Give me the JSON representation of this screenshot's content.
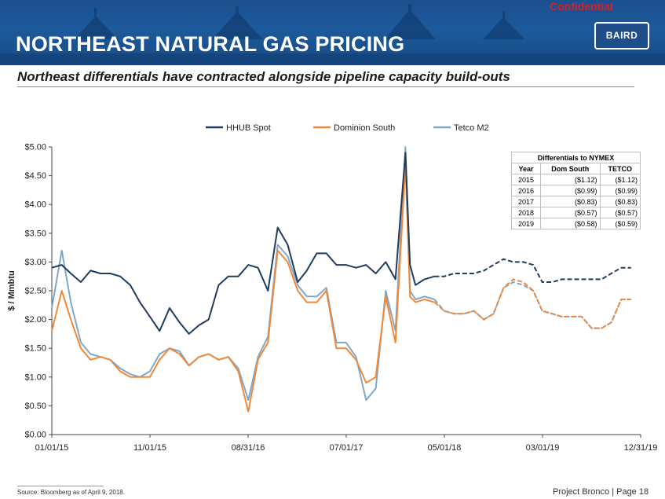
{
  "header": {
    "title": "NORTHEAST NATURAL GAS PRICING",
    "confidential": "Confidential",
    "logo_text": "BAIRD"
  },
  "subtitle": "Northeast differentials have contracted alongside pipeline capacity build-outs",
  "colors": {
    "header_bg": "#1d5a9c",
    "hhub": "#1f3c5e",
    "dominion": "#f0883a",
    "tetco": "#7fa7c9",
    "confidential": "#d4202a"
  },
  "chart_data": {
    "type": "line",
    "ylabel": "$ / Mmbtu",
    "ylim": [
      0,
      5
    ],
    "y_ticks": [
      "$0.00",
      "$0.50",
      "$1.00",
      "$1.50",
      "$2.00",
      "$2.50",
      "$3.00",
      "$3.50",
      "$4.00",
      "$4.50",
      "$5.00"
    ],
    "x_tick_labels": [
      "01/01/15",
      "11/01/15",
      "08/31/16",
      "07/01/17",
      "05/01/18",
      "03/01/19",
      "12/31/19"
    ],
    "x_range": [
      "2015-01-01",
      "2019-12-31"
    ],
    "grid": false,
    "legend_position": "top",
    "legend": [
      "HHUB Spot",
      "Dominion South",
      "Tetco M2"
    ],
    "forecast_start": "2018-04-09",
    "series": [
      {
        "name": "HHUB Spot",
        "style": "solid then dashed (forecast)",
        "points": [
          [
            "2015-01-01",
            2.9
          ],
          [
            "2015-02-01",
            2.95
          ],
          [
            "2015-03-01",
            2.8
          ],
          [
            "2015-04-01",
            2.65
          ],
          [
            "2015-05-01",
            2.85
          ],
          [
            "2015-06-01",
            2.8
          ],
          [
            "2015-07-01",
            2.8
          ],
          [
            "2015-08-01",
            2.75
          ],
          [
            "2015-09-01",
            2.6
          ],
          [
            "2015-10-01",
            2.3
          ],
          [
            "2015-11-01",
            2.05
          ],
          [
            "2015-12-01",
            1.8
          ],
          [
            "2016-01-01",
            2.2
          ],
          [
            "2016-02-01",
            1.95
          ],
          [
            "2016-03-01",
            1.75
          ],
          [
            "2016-04-01",
            1.9
          ],
          [
            "2016-05-01",
            2.0
          ],
          [
            "2016-06-01",
            2.6
          ],
          [
            "2016-07-01",
            2.75
          ],
          [
            "2016-08-01",
            2.75
          ],
          [
            "2016-09-01",
            2.95
          ],
          [
            "2016-10-01",
            2.9
          ],
          [
            "2016-11-01",
            2.5
          ],
          [
            "2016-12-01",
            3.6
          ],
          [
            "2017-01-01",
            3.3
          ],
          [
            "2017-02-01",
            2.65
          ],
          [
            "2017-03-01",
            2.85
          ],
          [
            "2017-04-01",
            3.15
          ],
          [
            "2017-05-01",
            3.15
          ],
          [
            "2017-06-01",
            2.95
          ],
          [
            "2017-07-01",
            2.95
          ],
          [
            "2017-08-01",
            2.9
          ],
          [
            "2017-09-01",
            2.95
          ],
          [
            "2017-10-01",
            2.8
          ],
          [
            "2017-11-01",
            3.0
          ],
          [
            "2017-12-01",
            2.7
          ],
          [
            "2018-01-01",
            4.9
          ],
          [
            "2018-01-15",
            2.95
          ],
          [
            "2018-02-01",
            2.6
          ],
          [
            "2018-03-01",
            2.7
          ],
          [
            "2018-04-01",
            2.75
          ],
          [
            "2018-05-01",
            2.75
          ],
          [
            "2018-06-01",
            2.8
          ],
          [
            "2018-07-01",
            2.8
          ],
          [
            "2018-08-01",
            2.8
          ],
          [
            "2018-09-01",
            2.85
          ],
          [
            "2018-10-01",
            2.95
          ],
          [
            "2018-11-01",
            3.05
          ],
          [
            "2018-12-01",
            3.0
          ],
          [
            "2019-01-01",
            3.0
          ],
          [
            "2019-02-01",
            2.95
          ],
          [
            "2019-03-01",
            2.65
          ],
          [
            "2019-04-01",
            2.65
          ],
          [
            "2019-05-01",
            2.7
          ],
          [
            "2019-06-01",
            2.7
          ],
          [
            "2019-07-01",
            2.7
          ],
          [
            "2019-08-01",
            2.7
          ],
          [
            "2019-09-01",
            2.7
          ],
          [
            "2019-10-01",
            2.8
          ],
          [
            "2019-11-01",
            2.9
          ],
          [
            "2019-12-01",
            2.9
          ]
        ]
      },
      {
        "name": "Dominion South",
        "style": "solid then dashed (forecast)",
        "points": [
          [
            "2015-01-01",
            1.8
          ],
          [
            "2015-02-01",
            2.5
          ],
          [
            "2015-03-01",
            2.0
          ],
          [
            "2015-04-01",
            1.5
          ],
          [
            "2015-05-01",
            1.3
          ],
          [
            "2015-06-01",
            1.35
          ],
          [
            "2015-07-01",
            1.3
          ],
          [
            "2015-08-01",
            1.1
          ],
          [
            "2015-09-01",
            1.0
          ],
          [
            "2015-10-01",
            1.0
          ],
          [
            "2015-11-01",
            1.0
          ],
          [
            "2015-12-01",
            1.3
          ],
          [
            "2016-01-01",
            1.5
          ],
          [
            "2016-02-01",
            1.4
          ],
          [
            "2016-03-01",
            1.2
          ],
          [
            "2016-04-01",
            1.35
          ],
          [
            "2016-05-01",
            1.4
          ],
          [
            "2016-06-01",
            1.3
          ],
          [
            "2016-07-01",
            1.35
          ],
          [
            "2016-08-01",
            1.1
          ],
          [
            "2016-09-01",
            0.4
          ],
          [
            "2016-10-01",
            1.3
          ],
          [
            "2016-11-01",
            1.6
          ],
          [
            "2016-12-01",
            3.2
          ],
          [
            "2017-01-01",
            3.0
          ],
          [
            "2017-02-01",
            2.5
          ],
          [
            "2017-03-01",
            2.3
          ],
          [
            "2017-04-01",
            2.3
          ],
          [
            "2017-05-01",
            2.5
          ],
          [
            "2017-06-01",
            1.5
          ],
          [
            "2017-07-01",
            1.5
          ],
          [
            "2017-08-01",
            1.3
          ],
          [
            "2017-09-01",
            0.9
          ],
          [
            "2017-10-01",
            1.0
          ],
          [
            "2017-11-01",
            2.4
          ],
          [
            "2017-12-01",
            1.6
          ],
          [
            "2018-01-01",
            4.7
          ],
          [
            "2018-01-15",
            2.4
          ],
          [
            "2018-02-01",
            2.3
          ],
          [
            "2018-03-01",
            2.35
          ],
          [
            "2018-04-01",
            2.3
          ],
          [
            "2018-05-01",
            2.15
          ],
          [
            "2018-06-01",
            2.1
          ],
          [
            "2018-07-01",
            2.1
          ],
          [
            "2018-08-01",
            2.15
          ],
          [
            "2018-09-01",
            2.0
          ],
          [
            "2018-10-01",
            2.1
          ],
          [
            "2018-11-01",
            2.55
          ],
          [
            "2018-12-01",
            2.7
          ],
          [
            "2019-01-01",
            2.65
          ],
          [
            "2019-02-01",
            2.5
          ],
          [
            "2019-03-01",
            2.15
          ],
          [
            "2019-04-01",
            2.1
          ],
          [
            "2019-05-01",
            2.05
          ],
          [
            "2019-06-01",
            2.05
          ],
          [
            "2019-07-01",
            2.05
          ],
          [
            "2019-08-01",
            1.85
          ],
          [
            "2019-09-01",
            1.85
          ],
          [
            "2019-10-01",
            1.95
          ],
          [
            "2019-11-01",
            2.35
          ],
          [
            "2019-12-01",
            2.35
          ]
        ]
      },
      {
        "name": "Tetco M2",
        "style": "solid then dashed (forecast)",
        "points": [
          [
            "2015-01-01",
            2.2
          ],
          [
            "2015-02-01",
            3.2
          ],
          [
            "2015-03-01",
            2.3
          ],
          [
            "2015-04-01",
            1.6
          ],
          [
            "2015-05-01",
            1.4
          ],
          [
            "2015-06-01",
            1.35
          ],
          [
            "2015-07-01",
            1.3
          ],
          [
            "2015-08-01",
            1.15
          ],
          [
            "2015-09-01",
            1.05
          ],
          [
            "2015-10-01",
            1.0
          ],
          [
            "2015-11-01",
            1.1
          ],
          [
            "2015-12-01",
            1.4
          ],
          [
            "2016-01-01",
            1.5
          ],
          [
            "2016-02-01",
            1.45
          ],
          [
            "2016-03-01",
            1.2
          ],
          [
            "2016-04-01",
            1.35
          ],
          [
            "2016-05-01",
            1.4
          ],
          [
            "2016-06-01",
            1.3
          ],
          [
            "2016-07-01",
            1.35
          ],
          [
            "2016-08-01",
            1.15
          ],
          [
            "2016-09-01",
            0.6
          ],
          [
            "2016-10-01",
            1.35
          ],
          [
            "2016-11-01",
            1.7
          ],
          [
            "2016-12-01",
            3.3
          ],
          [
            "2017-01-01",
            3.1
          ],
          [
            "2017-02-01",
            2.6
          ],
          [
            "2017-03-01",
            2.4
          ],
          [
            "2017-04-01",
            2.4
          ],
          [
            "2017-05-01",
            2.55
          ],
          [
            "2017-06-01",
            1.6
          ],
          [
            "2017-07-01",
            1.6
          ],
          [
            "2017-08-01",
            1.35
          ],
          [
            "2017-09-01",
            0.6
          ],
          [
            "2017-10-01",
            0.8
          ],
          [
            "2017-11-01",
            2.5
          ],
          [
            "2017-12-01",
            1.8
          ],
          [
            "2018-01-01",
            5.0
          ],
          [
            "2018-01-15",
            2.5
          ],
          [
            "2018-02-01",
            2.35
          ],
          [
            "2018-03-01",
            2.4
          ],
          [
            "2018-04-01",
            2.35
          ],
          [
            "2018-05-01",
            2.15
          ],
          [
            "2018-06-01",
            2.1
          ],
          [
            "2018-07-01",
            2.1
          ],
          [
            "2018-08-01",
            2.15
          ],
          [
            "2018-09-01",
            2.0
          ],
          [
            "2018-10-01",
            2.1
          ],
          [
            "2018-11-01",
            2.55
          ],
          [
            "2018-12-01",
            2.65
          ],
          [
            "2019-01-01",
            2.6
          ],
          [
            "2019-02-01",
            2.5
          ],
          [
            "2019-03-01",
            2.15
          ],
          [
            "2019-04-01",
            2.1
          ],
          [
            "2019-05-01",
            2.05
          ],
          [
            "2019-06-01",
            2.05
          ],
          [
            "2019-07-01",
            2.05
          ],
          [
            "2019-08-01",
            1.85
          ],
          [
            "2019-09-01",
            1.85
          ],
          [
            "2019-10-01",
            1.95
          ],
          [
            "2019-11-01",
            2.35
          ],
          [
            "2019-12-01",
            2.35
          ]
        ]
      }
    ]
  },
  "table": {
    "caption": "Differentials to NYMEX",
    "headers": [
      "Year",
      "Dom South",
      "TETCO"
    ],
    "rows": [
      [
        "2015",
        "($1.12)",
        "($1.12)"
      ],
      [
        "2016",
        "($0.99)",
        "($0.99)"
      ],
      [
        "2017",
        "($0.83)",
        "($0.83)"
      ],
      [
        "2018",
        "($0.57)",
        "($0.57)"
      ],
      [
        "2019",
        "($0.58)",
        "($0.59)"
      ]
    ]
  },
  "footer": {
    "source": "Source: Bloomberg as of April 9, 2018.",
    "project": "Project Bronco   |   Page 18"
  }
}
